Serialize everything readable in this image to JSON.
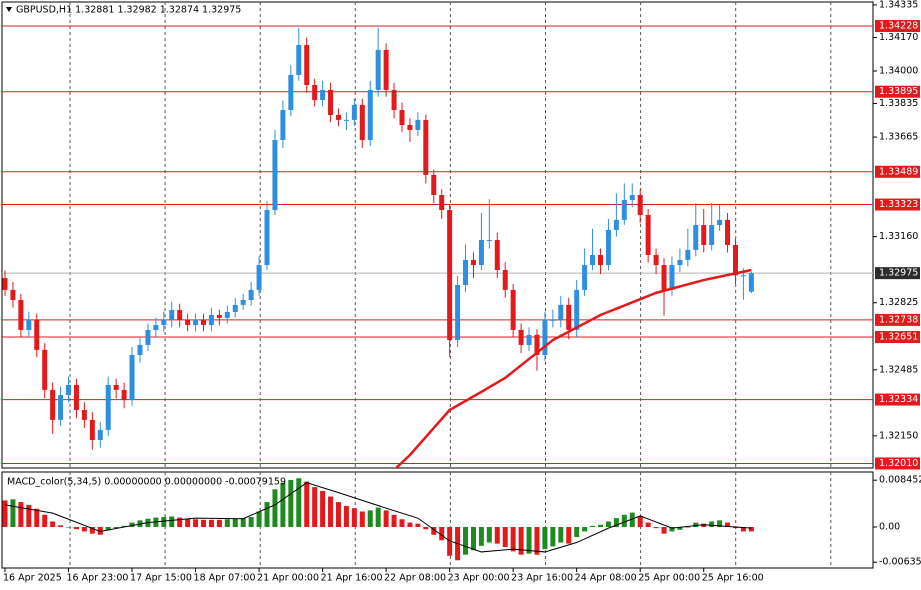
{
  "chart_data": [
    {
      "type": "candlestick",
      "title": "GBPUSD,H1  1.32881 1.32982 1.32874 1.32975",
      "open": [
        1.3295,
        1.3289,
        1.32839,
        1.32687,
        1.32738,
        1.32586,
        1.32383,
        1.32231,
        1.32357,
        1.32408,
        1.32281,
        1.32231,
        1.32129,
        1.3218,
        1.32408,
        1.32383,
        1.32332,
        1.3256,
        1.32611,
        1.32687,
        1.32712,
        1.32738,
        1.32788,
        1.32738,
        1.32712,
        1.32738,
        1.32712,
        1.32763,
        1.32748,
        1.32778,
        1.32814,
        1.32839,
        1.3289,
        1.33016,
        1.33295,
        1.3365,
        1.33802,
        1.3398,
        1.34132,
        1.33929,
        1.33853,
        1.33904,
        1.33777,
        1.33752,
        1.33752,
        1.33828,
        1.3365,
        1.33904,
        1.34107,
        1.33904,
        1.33802,
        1.33726,
        1.33701,
        1.33752,
        1.33473,
        1.33371,
        1.33295,
        1.32636,
        1.32915,
        1.33042,
        1.33016,
        1.33143,
        1.33143,
        1.32991,
        1.3289,
        1.32687,
        1.32611,
        1.32662,
        1.3256,
        1.32738,
        1.32738,
        1.32814,
        1.32687,
        1.3289,
        1.33016,
        1.33067,
        1.33016,
        1.33194,
        1.33245,
        1.33346,
        1.33371,
        1.3327,
        1.33067,
        1.33016,
        1.3289,
        1.33016,
        1.33042,
        1.33093,
        1.33219,
        1.33118,
        1.33219,
        1.33245,
        1.33118,
        1.32964,
        1.32881
      ],
      "high": [
        1.3299,
        1.3293,
        1.3287,
        1.3278,
        1.3277,
        1.3262,
        1.3242,
        1.324,
        1.3245,
        1.3244,
        1.3232,
        1.3227,
        1.3222,
        1.3245,
        1.3244,
        1.3242,
        1.326,
        1.3265,
        1.3272,
        1.3275,
        1.3278,
        1.3283,
        1.3282,
        1.3277,
        1.3277,
        1.3277,
        1.328,
        1.3279,
        1.3281,
        1.3285,
        1.3287,
        1.3293,
        1.3306,
        1.3334,
        1.337,
        1.3385,
        1.3403,
        1.3422,
        1.3417,
        1.3396,
        1.3395,
        1.3394,
        1.3381,
        1.3379,
        1.3386,
        1.3386,
        1.3395,
        1.3422,
        1.3414,
        1.3394,
        1.3384,
        1.3376,
        1.3379,
        1.3378,
        1.335,
        1.334,
        1.3332,
        1.3296,
        1.3312,
        1.3308,
        1.3328,
        1.3335,
        1.3318,
        1.3303,
        1.3292,
        1.3272,
        1.327,
        1.3269,
        1.3278,
        1.3279,
        1.3286,
        1.3285,
        1.3294,
        1.331,
        1.332,
        1.331,
        1.3325,
        1.3338,
        1.3343,
        1.3343,
        1.334,
        1.333,
        1.331,
        1.3305,
        1.3306,
        1.331,
        1.332,
        1.3333,
        1.333,
        1.3333,
        1.3332,
        1.3328,
        1.3315,
        1.33,
        1.32982
      ],
      "low": [
        1.3286,
        1.328,
        1.3265,
        1.3265,
        1.3255,
        1.3234,
        1.3216,
        1.322,
        1.3232,
        1.3224,
        1.3219,
        1.3208,
        1.3209,
        1.3215,
        1.3234,
        1.3229,
        1.323,
        1.3252,
        1.3258,
        1.3265,
        1.3268,
        1.327,
        1.327,
        1.3268,
        1.3268,
        1.3268,
        1.3268,
        1.3271,
        1.3272,
        1.3275,
        1.3279,
        1.3281,
        1.3286,
        1.3299,
        1.3327,
        1.3361,
        1.3377,
        1.3395,
        1.3389,
        1.3382,
        1.3382,
        1.3374,
        1.3372,
        1.337,
        1.3372,
        1.3361,
        1.3362,
        1.3387,
        1.3387,
        1.3376,
        1.3369,
        1.3364,
        1.3367,
        1.3343,
        1.3333,
        1.3325,
        1.3255,
        1.326,
        1.3288,
        1.3295,
        1.3299,
        1.331,
        1.3295,
        1.3285,
        1.3265,
        1.3257,
        1.3258,
        1.3248,
        1.3253,
        1.327,
        1.327,
        1.3264,
        1.3265,
        1.3286,
        1.3299,
        1.3297,
        1.3299,
        1.3316,
        1.3322,
        1.3331,
        1.3323,
        1.3303,
        1.3297,
        1.3276,
        1.3286,
        1.3298,
        1.3301,
        1.3306,
        1.3308,
        1.3309,
        1.3319,
        1.3308,
        1.3292,
        1.3284,
        1.32874
      ],
      "close": [
        1.3289,
        1.32839,
        1.32687,
        1.32738,
        1.32586,
        1.32383,
        1.32231,
        1.32357,
        1.32408,
        1.32281,
        1.32231,
        1.32129,
        1.3218,
        1.32408,
        1.32383,
        1.32332,
        1.3256,
        1.32611,
        1.32687,
        1.32712,
        1.32738,
        1.32788,
        1.32738,
        1.32712,
        1.32738,
        1.32712,
        1.32763,
        1.32748,
        1.32778,
        1.32814,
        1.32839,
        1.3289,
        1.33016,
        1.33295,
        1.3365,
        1.33802,
        1.3398,
        1.34132,
        1.33929,
        1.33853,
        1.33904,
        1.33777,
        1.33752,
        1.33752,
        1.33828,
        1.3365,
        1.33904,
        1.34107,
        1.33904,
        1.33802,
        1.33726,
        1.33701,
        1.33752,
        1.33473,
        1.33371,
        1.33295,
        1.32636,
        1.32915,
        1.33042,
        1.33016,
        1.33143,
        1.33143,
        1.32991,
        1.3289,
        1.32687,
        1.32611,
        1.32662,
        1.3256,
        1.32738,
        1.32738,
        1.32814,
        1.32687,
        1.3289,
        1.33016,
        1.33067,
        1.33016,
        1.33194,
        1.33245,
        1.33346,
        1.33371,
        1.3327,
        1.33067,
        1.33016,
        1.3289,
        1.33016,
        1.33042,
        1.33093,
        1.33219,
        1.33118,
        1.33219,
        1.33245,
        1.33118,
        1.32964,
        1.32964,
        1.32975
      ],
      "up_color": "#2e8fe0",
      "down_color": "#e3191c",
      "ma": {
        "color": "#e3191c",
        "x": [
          49,
          51,
          56,
          60,
          63,
          69,
          75,
          82,
          88,
          94
        ],
        "values": [
          1.31977,
          1.32053,
          1.32281,
          1.32373,
          1.32444,
          1.32636,
          1.32763,
          1.32875,
          1.3294,
          1.32991
        ]
      },
      "levels": [
        1.34228,
        1.33895,
        1.33489,
        1.33323,
        1.32738,
        1.32651,
        1.32334,
        {
          "value": 1.3201,
          "label": "1.32010"
        }
      ],
      "level_color": "#e3191c",
      "bid": 1.32975,
      "ylim": [
        1.31987,
        1.3436
      ],
      "yticks": [
        1.34335,
        {
          "value": 1.3417,
          "label": "1.34170"
        },
        {
          "value": 1.34,
          "label": "1.34000"
        },
        1.33835,
        1.33665,
        {
          "value": 1.3316,
          "label": "1.33160"
        },
        1.32825,
        1.32485,
        {
          "value": 1.3215,
          "label": "1.32150"
        }
      ]
    },
    {
      "type": "macd",
      "title": "MACD_color(5,34,5) 0.00000000 0.00000000 -0.00079159",
      "values": [
        0.0048,
        0.005,
        0.0045,
        0.004,
        0.0033,
        0.0022,
        0.001,
        0.0003,
        0.0,
        -0.0004,
        -0.0008,
        -0.0012,
        -0.0014,
        -0.0006,
        -0.0002,
        0.0002,
        0.0008,
        0.0012,
        0.0015,
        0.0017,
        0.0018,
        0.0019,
        0.0017,
        0.0015,
        0.0014,
        0.0013,
        0.0013,
        0.0013,
        0.0014,
        0.0015,
        0.0016,
        0.0018,
        0.0028,
        0.0045,
        0.0068,
        0.008,
        0.0085,
        0.0088,
        0.0082,
        0.0072,
        0.0065,
        0.0055,
        0.0045,
        0.0038,
        0.0034,
        0.0028,
        0.003,
        0.0035,
        0.003,
        0.0022,
        0.0014,
        0.0008,
        0.0006,
        -0.0004,
        -0.0014,
        -0.0024,
        -0.0052,
        -0.006,
        -0.005,
        -0.0042,
        -0.0034,
        -0.0028,
        -0.003,
        -0.0036,
        -0.0044,
        -0.005,
        -0.0048,
        -0.005,
        -0.004,
        -0.0035,
        -0.0028,
        -0.003,
        -0.0018,
        -0.0008,
        0.0002,
        0.0004,
        0.001,
        0.0016,
        0.0022,
        0.0026,
        0.002,
        0.0008,
        -0.0002,
        -0.0012,
        -0.0008,
        -0.0005,
        0.0,
        0.0008,
        0.0006,
        0.001,
        0.0012,
        0.0008,
        -0.0002,
        -0.0008,
        -0.0008
      ],
      "up_color": "#1f8a1f",
      "down_color": "#e3191c",
      "signal": {
        "color": "#000000",
        "x": [
          0,
          6,
          12,
          18,
          24,
          30,
          34,
          38,
          42,
          48,
          52,
          56,
          60,
          64,
          68,
          72,
          76,
          80,
          84,
          88,
          94
        ],
        "values": [
          0.004,
          0.0025,
          -0.0008,
          0.0008,
          0.0016,
          0.0015,
          0.004,
          0.008,
          0.0062,
          0.0034,
          0.0016,
          -0.0025,
          -0.0045,
          -0.004,
          -0.0045,
          -0.0028,
          -0.0002,
          0.002,
          -0.0002,
          0.0004,
          -0.0002
        ]
      },
      "ylim": [
        -0.0074,
        0.00993
      ],
      "yticks": [
        0.0084521,
        {
          "value": 0,
          "label": "0.00"
        },
        -0.006358
      ],
      "xticks": [
        {
          "value": 0,
          "label": "16 Apr 2025"
        },
        {
          "value": 8,
          "label": "16 Apr 23:00"
        },
        {
          "value": 16,
          "label": "17 Apr 15:00"
        },
        {
          "value": 24,
          "label": "18 Apr 07:00"
        },
        {
          "value": 32,
          "label": "21 Apr 00:00"
        },
        {
          "value": 40,
          "label": "21 Apr 16:00"
        },
        {
          "value": 48,
          "label": "22 Apr 08:00"
        },
        {
          "value": 56,
          "label": "23 Apr 00:00"
        },
        {
          "value": 64,
          "label": "23 Apr 16:00"
        },
        {
          "value": 72,
          "label": "24 Apr 08:00"
        },
        {
          "value": 80,
          "label": "25 Apr 00:00"
        },
        {
          "value": 88,
          "label": "25 Apr 16:00"
        }
      ]
    }
  ]
}
